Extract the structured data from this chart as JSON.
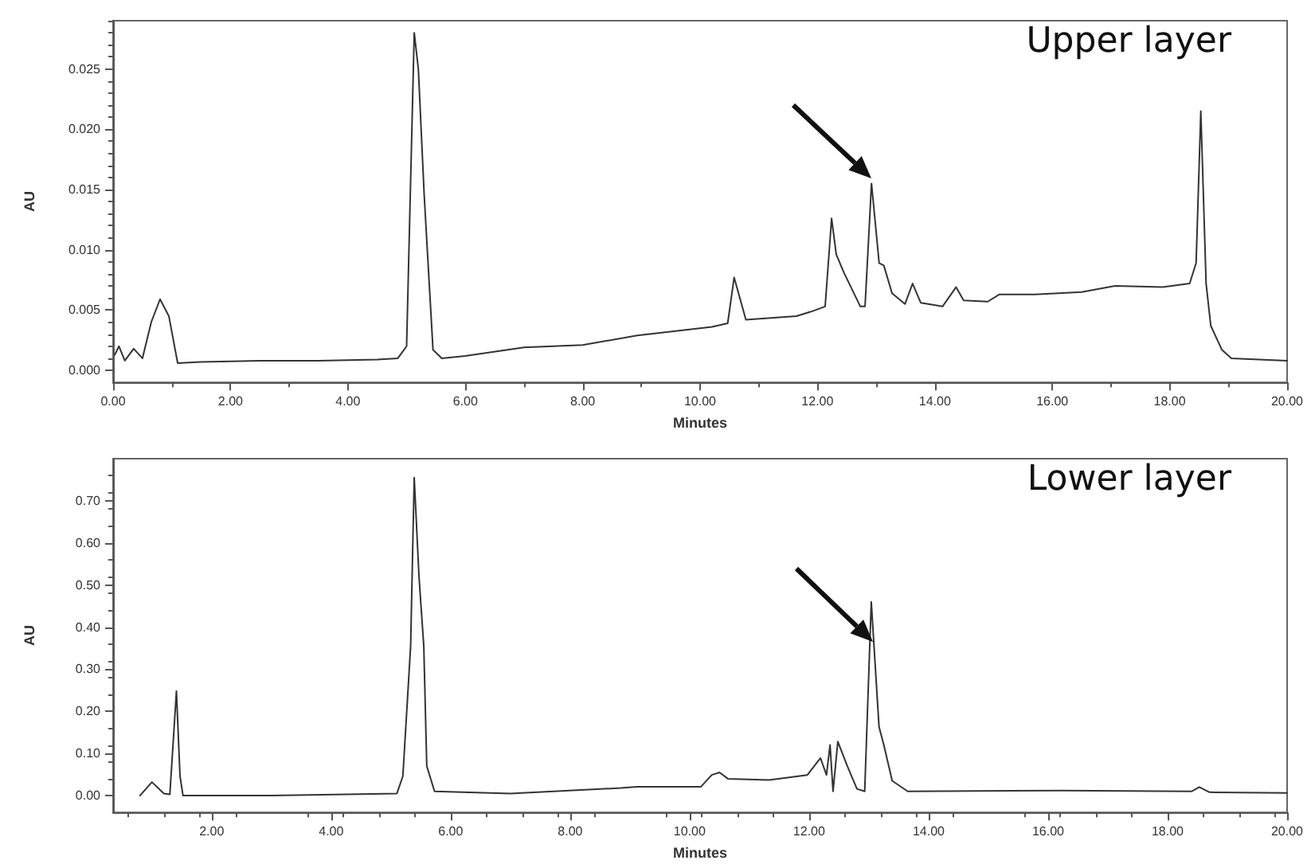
{
  "chart_data": [
    {
      "type": "line",
      "title": "Upper layer",
      "xlabel": "Minutes",
      "ylabel": "AU",
      "color": "#333333",
      "marker": "none",
      "grid": false,
      "x": [
        0.03,
        0.1,
        0.2,
        0.35,
        0.5,
        0.65,
        0.8,
        0.95,
        1.1,
        1.5,
        2.5,
        3.5,
        4.5,
        4.85,
        5.0,
        5.13,
        5.2,
        5.3,
        5.45,
        5.6,
        6.0,
        7.0,
        8.0,
        8.93,
        10.2,
        10.47,
        10.58,
        10.78,
        11.64,
        11.91,
        12.13,
        12.24,
        12.32,
        12.45,
        12.73,
        12.81,
        12.92,
        13.05,
        13.13,
        13.27,
        13.49,
        13.62,
        13.76,
        14.13,
        14.36,
        14.49,
        14.9,
        15.1,
        15.7,
        16.5,
        17.07,
        17.88,
        18.34,
        18.45,
        18.53,
        18.62,
        18.7,
        18.89,
        19.05,
        20.0
      ],
      "values": [
        0.0013,
        0.002,
        0.0008,
        0.0018,
        0.001,
        0.004,
        0.0059,
        0.0045,
        0.0006,
        0.0007,
        0.0008,
        0.0008,
        0.0009,
        0.001,
        0.002,
        0.028,
        0.025,
        0.0145,
        0.0017,
        0.001,
        0.0012,
        0.0019,
        0.0021,
        0.0029,
        0.0036,
        0.0039,
        0.0077,
        0.0042,
        0.0045,
        0.0049,
        0.0053,
        0.0126,
        0.0096,
        0.0081,
        0.0053,
        0.0053,
        0.0155,
        0.0089,
        0.0087,
        0.0064,
        0.0055,
        0.0072,
        0.0056,
        0.0053,
        0.0069,
        0.0058,
        0.0057,
        0.0063,
        0.0063,
        0.0065,
        0.007,
        0.0069,
        0.0072,
        0.0089,
        0.0215,
        0.0072,
        0.0037,
        0.0017,
        0.001,
        0.0008
      ],
      "xlim": [
        0,
        20
      ],
      "xticks": [
        {
          "value": 0,
          "label": "0.00"
        },
        {
          "value": 2,
          "label": "2.00"
        },
        {
          "value": 4,
          "label": "4.00"
        },
        {
          "value": 6,
          "label": "6.00"
        },
        {
          "value": 8,
          "label": "8.00"
        },
        {
          "value": 10,
          "label": "10.00"
        },
        {
          "value": 12,
          "label": "12.00"
        },
        {
          "value": 14,
          "label": "14.00"
        },
        {
          "value": 16,
          "label": "16.00"
        },
        {
          "value": 18,
          "label": "18.00"
        },
        {
          "value": 20,
          "label": "20.00"
        }
      ],
      "ylim": [
        -0.001,
        0.029
      ],
      "yticks": [
        {
          "value": 0,
          "label": "0.000"
        },
        {
          "value": 0.005,
          "label": "0.005"
        },
        {
          "value": 0.01,
          "label": "0.010"
        },
        {
          "value": 0.015,
          "label": "0.015"
        },
        {
          "value": 0.02,
          "label": "0.020"
        },
        {
          "value": 0.025,
          "label": "0.025"
        }
      ]
    },
    {
      "type": "line",
      "title": "Lower layer",
      "xlabel": "Minutes",
      "ylabel": "AU",
      "color": "#333333",
      "marker": "none",
      "grid": false,
      "x": [
        0.8,
        1.0,
        1.2,
        1.3,
        1.41,
        1.47,
        1.52,
        3.0,
        5.1,
        5.2,
        5.33,
        5.39,
        5.47,
        5.55,
        5.6,
        5.73,
        7.0,
        8.85,
        9.12,
        10.19,
        10.37,
        10.5,
        10.64,
        11.33,
        11.97,
        12.19,
        12.29,
        12.35,
        12.4,
        12.48,
        12.64,
        12.8,
        12.93,
        13.04,
        13.17,
        13.25,
        13.39,
        13.65,
        16.24,
        18.4,
        18.53,
        18.7,
        20.0
      ],
      "values": [
        0.0,
        0.032,
        0.005,
        0.003,
        0.248,
        0.046,
        0.0,
        0.0,
        0.005,
        0.046,
        0.355,
        0.755,
        0.52,
        0.355,
        0.07,
        0.01,
        0.005,
        0.018,
        0.021,
        0.021,
        0.049,
        0.055,
        0.04,
        0.037,
        0.049,
        0.089,
        0.049,
        0.12,
        0.01,
        0.128,
        0.07,
        0.016,
        0.01,
        0.46,
        0.163,
        0.12,
        0.035,
        0.01,
        0.012,
        0.01,
        0.02,
        0.008,
        0.006
      ],
      "xlim": [
        0.35,
        20
      ],
      "xticks": [
        {
          "value": 2,
          "label": "2.00"
        },
        {
          "value": 4,
          "label": "4.00"
        },
        {
          "value": 6,
          "label": "6.00"
        },
        {
          "value": 8,
          "label": "8.00"
        },
        {
          "value": 10,
          "label": "10.00"
        },
        {
          "value": 12,
          "label": "12.00"
        },
        {
          "value": 14,
          "label": "14.00"
        },
        {
          "value": 16,
          "label": "16.00"
        },
        {
          "value": 18,
          "label": "18.00"
        },
        {
          "value": 20,
          "label": "20.00"
        }
      ],
      "ylim": [
        -0.04,
        0.8
      ],
      "yticks": [
        {
          "value": 0,
          "label": "0.00"
        },
        {
          "value": 0.1,
          "label": "0.10"
        },
        {
          "value": 0.2,
          "label": "0.20"
        },
        {
          "value": 0.3,
          "label": "0.30"
        },
        {
          "value": 0.4,
          "label": "0.40"
        },
        {
          "value": 0.5,
          "label": "0.50"
        },
        {
          "value": 0.6,
          "label": "0.60"
        },
        {
          "value": 0.7,
          "label": "0.70"
        }
      ]
    }
  ]
}
